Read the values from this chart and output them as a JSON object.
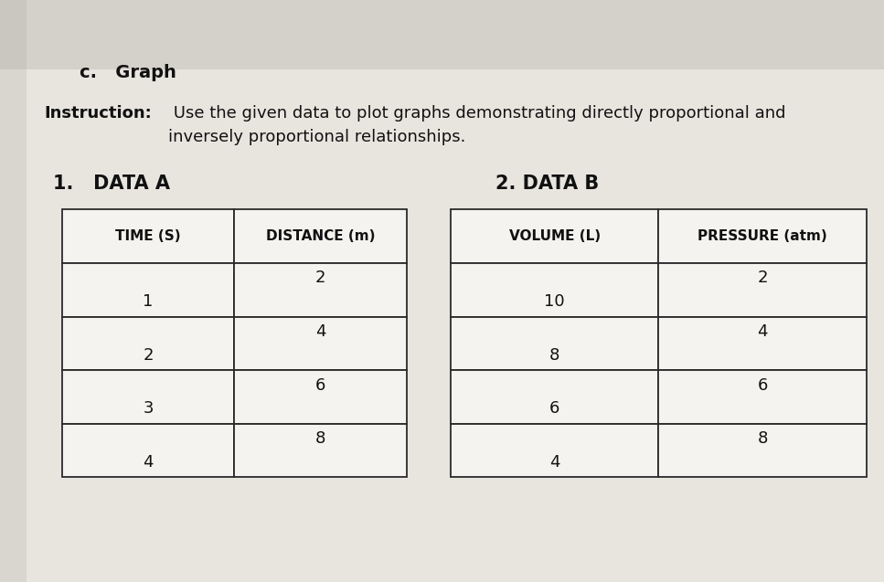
{
  "title_c": "c.   Graph",
  "instruction_bold": "Instruction:",
  "instruction_rest": " Use the given data to plot graphs demonstrating directly proportional and\ninversely proportional relationships.",
  "table1_title": "1.   DATA A",
  "table1_col1_header": "TIME (S)",
  "table1_col2_header": "DISTANCE (m)",
  "table1_col1": [
    1,
    2,
    3,
    4
  ],
  "table1_col2": [
    2,
    4,
    6,
    8
  ],
  "table2_title": "2. DATA B",
  "table2_col1_header": "VOLUME (L)",
  "table2_col2_header": "PRESSURE (atm)",
  "table2_col1": [
    10,
    8,
    6,
    4
  ],
  "table2_col2": [
    2,
    4,
    6,
    8
  ],
  "bg_color": "#e8e5df",
  "table_bg": "#f0eeea",
  "text_color": "#111111",
  "font_size_title_c": 14,
  "font_size_instruction": 13,
  "font_size_section": 15,
  "font_size_header": 12,
  "font_size_cell": 13
}
